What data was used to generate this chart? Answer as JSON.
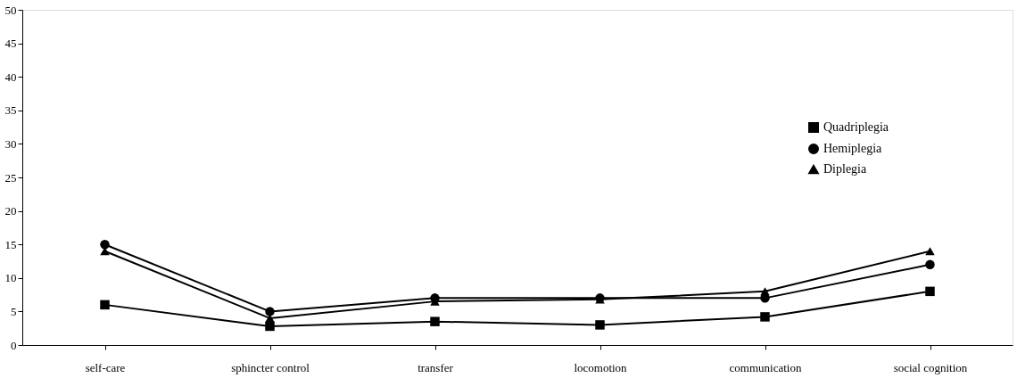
{
  "chart_data": {
    "type": "line",
    "categories": [
      "self-care",
      "sphincter control",
      "transfer",
      "locomotion",
      "communication",
      "social cognition"
    ],
    "series": [
      {
        "name": "Quadriplegia",
        "color": "#000000",
        "marker": "square",
        "values": [
          6,
          2.8,
          3.5,
          3,
          4.2,
          8
        ]
      },
      {
        "name": "Hemiplegia",
        "color": "#000000",
        "marker": "circle",
        "values": [
          15,
          5,
          7,
          7,
          7,
          12
        ]
      },
      {
        "name": "Diplegia",
        "color": "#000000",
        "marker": "triangle",
        "values": [
          14,
          4,
          6.5,
          6.8,
          8,
          14
        ]
      }
    ],
    "ylim": [
      0,
      50
    ],
    "yticks": [
      0,
      5,
      10,
      15,
      20,
      25,
      30,
      35,
      40,
      45,
      50
    ],
    "grid": false,
    "legend": "right",
    "line_style": "solid"
  }
}
